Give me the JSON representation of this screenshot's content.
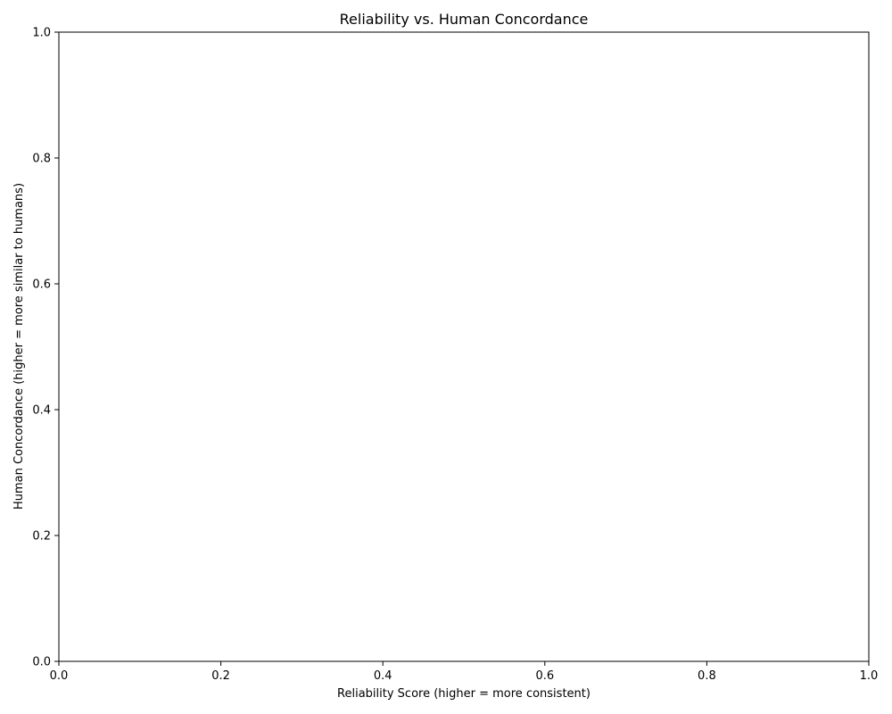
{
  "chart_data": {
    "type": "scatter",
    "title": "Reliability vs. Human Concordance",
    "xlabel": "Reliability Score (higher = more consistent)",
    "ylabel": "Human Concordance (higher = more similar to humans)",
    "xlim": [
      0.0,
      1.0
    ],
    "ylim": [
      0.0,
      1.0
    ],
    "x_ticks": [
      "0.0",
      "0.2",
      "0.4",
      "0.6",
      "0.8",
      "1.0"
    ],
    "y_ticks": [
      "0.0",
      "0.2",
      "0.4",
      "0.6",
      "0.8",
      "1.0"
    ],
    "grid": false,
    "points": [],
    "colors": {
      "axis": "#000000",
      "background": "#ffffff"
    }
  }
}
